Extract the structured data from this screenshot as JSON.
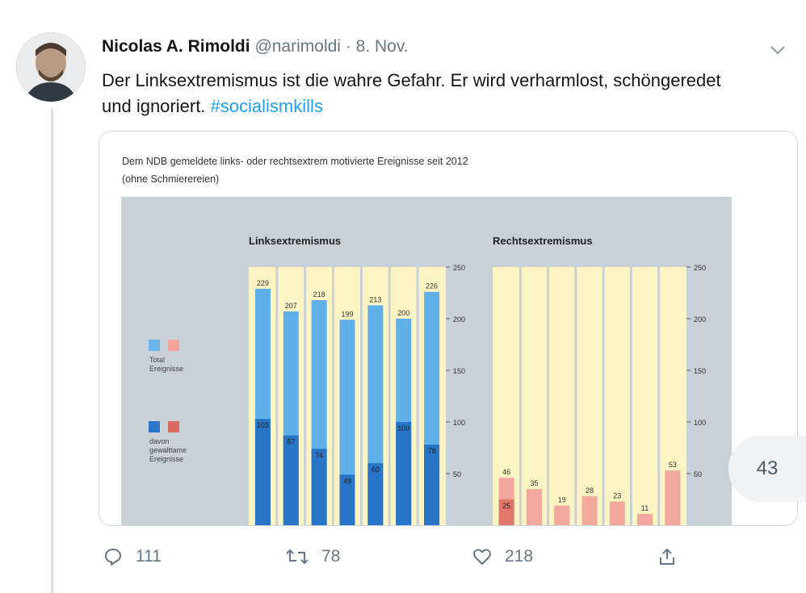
{
  "tweet": {
    "author_name": "Nicolas A. Rimoldi",
    "handle": "@narimoldi",
    "separator": "·",
    "date": "8. Nov.",
    "text": "Der Linksextremismus ist die wahre Gefahr. Er wird verharmlost, schöngeredet und ignoriert.",
    "hashtag": "#socialismkills"
  },
  "media_badge": "43",
  "actions": {
    "replies": "111",
    "retweets": "78",
    "likes": "218"
  },
  "chart_data": {
    "type": "bar",
    "title": "Dem NDB gemeldete links- oder rechtsextrem motivierte Ereignisse seit 2012",
    "subtitle": "(ohne Schmierereien)",
    "legend": [
      "Total Ereignisse",
      "davon gewalttame Ereignisse"
    ],
    "ylim": [
      0,
      250
    ],
    "yticks": [
      "250",
      "200",
      "150",
      "100",
      "50"
    ],
    "panels": [
      {
        "title": "Linksextremismus",
        "series": [
          {
            "name": "Total Ereignisse",
            "values": [
              229,
              207,
              218,
              199,
              213,
              200,
              226
            ]
          },
          {
            "name": "davon gewalttame Ereignisse",
            "values": [
              103,
              87,
              74,
              49,
              60,
              100,
              78
            ]
          }
        ]
      },
      {
        "title": "Rechtsextremismus",
        "series": [
          {
            "name": "Total Ereignisse",
            "values": [
              46,
              35,
              19,
              28,
              23,
              11,
              53
            ]
          },
          {
            "name": "davon gewalttame Ereignisse",
            "values": [
              25,
              0,
              0,
              0,
              0,
              0,
              0
            ]
          }
        ]
      }
    ]
  }
}
